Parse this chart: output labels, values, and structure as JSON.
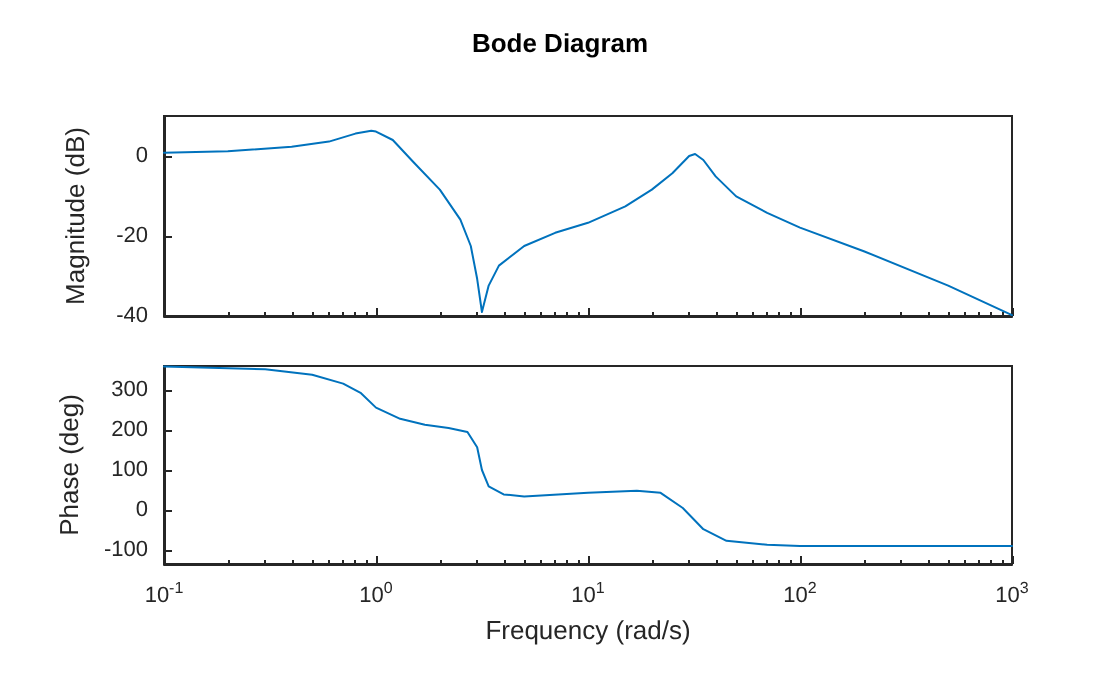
{
  "chart_data": [
    {
      "type": "line",
      "title": "Bode Diagram",
      "ylabel": "Magnitude (dB)",
      "log": "x",
      "grid": false,
      "tick_labels": "y",
      "marker": "none",
      "line_style": "solid",
      "xlim": [
        0.1,
        1000
      ],
      "xticks": [
        {
          "value": 0.1,
          "label": null
        },
        {
          "value": 1,
          "label": null
        },
        {
          "value": 10,
          "label": null
        },
        {
          "value": 100,
          "label": null
        },
        {
          "value": 1000,
          "label": null
        }
      ],
      "ylim": [
        -40,
        10
      ],
      "yticks": [
        -40,
        -20,
        0
      ],
      "x": [
        0.1,
        0.2,
        0.4,
        0.6,
        0.8,
        0.95,
        1.0,
        1.2,
        1.5,
        2,
        2.5,
        2.8,
        3.0,
        3.16,
        3.4,
        3.8,
        5,
        7,
        10,
        15,
        20,
        25,
        30,
        32,
        35,
        40,
        50,
        70,
        100,
        200,
        500,
        1000
      ],
      "series": [
        {
          "color": "#0072bd",
          "values": [
            0.8,
            1.2,
            2.3,
            3.6,
            5.6,
            6.3,
            6.1,
            4.0,
            -1.5,
            -8.4,
            -15.9,
            -22.5,
            -30.7,
            -39,
            -32.4,
            -27.4,
            -22.5,
            -19.2,
            -16.7,
            -12.6,
            -8.4,
            -4.3,
            0,
            0.5,
            -1,
            -5.1,
            -10.1,
            -14.2,
            -17.9,
            -23.8,
            -32.4,
            -39.8
          ]
        }
      ]
    },
    {
      "type": "line",
      "xlabel": "Frequency (rad/s)",
      "ylabel": "Phase (deg)",
      "log": "x",
      "grid": false,
      "marker": "none",
      "line_style": "solid",
      "xlim": [
        0.1,
        1000
      ],
      "xticks": [
        {
          "value": 0.1,
          "label": "10$^{-1}$"
        },
        {
          "value": 1,
          "label": "10$^{0}$"
        },
        {
          "value": 10,
          "label": "10$^{1}$"
        },
        {
          "value": 100,
          "label": "10$^{2}$"
        },
        {
          "value": 1000,
          "label": "10$^{3}$"
        }
      ],
      "ylim": [
        -135,
        360
      ],
      "yticks": [
        -100,
        0,
        100,
        200,
        300
      ],
      "x": [
        0.1,
        0.3,
        0.5,
        0.7,
        0.85,
        1.0,
        1.3,
        1.7,
        2.2,
        2.7,
        3.0,
        3.16,
        3.4,
        4,
        5,
        10,
        17,
        22,
        28,
        35,
        45,
        70,
        100,
        1000
      ],
      "series": [
        {
          "color": "#0072bd",
          "values": [
            359,
            352,
            338,
            316,
            292,
            256,
            228,
            213,
            205,
            195,
            157,
            100,
            59,
            39,
            34,
            43,
            48,
            43,
            5,
            -48,
            -77,
            -87,
            -90,
            -90
          ]
        }
      ]
    }
  ]
}
